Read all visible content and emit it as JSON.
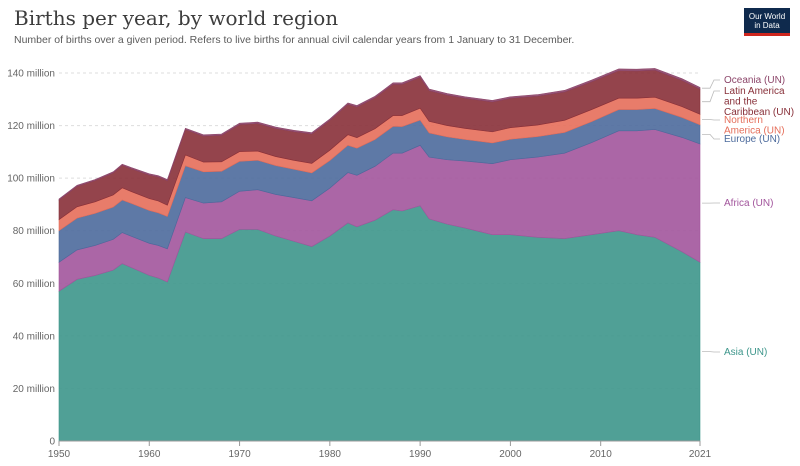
{
  "header": {
    "title": "Births per year, by world region",
    "subtitle": "Number of births over a given period. Refers to live births for annual civil calendar years from 1 January to 31 December."
  },
  "logo": {
    "line1": "Our World",
    "line2": "in Data"
  },
  "colors": {
    "asia": "#3d968b",
    "africa": "#a2559c",
    "europe": "#4c6a9c",
    "northern_america": "#e56e5a",
    "latin_america": "#883039",
    "oceania": "#8c4569",
    "gridline": "#dddddd",
    "axis": "#999999"
  },
  "chart_data": {
    "type": "area",
    "stacked": true,
    "title": "Births per year, by world region",
    "xlim": [
      1950,
      2021
    ],
    "ylim": [
      0,
      140000000
    ],
    "x_ticks": [
      1950,
      1960,
      1970,
      1980,
      1990,
      2000,
      2010,
      2021
    ],
    "y_ticks": [
      {
        "value": 0,
        "label": "0"
      },
      {
        "value": 20000000,
        "label": "20 million"
      },
      {
        "value": 40000000,
        "label": "40 million"
      },
      {
        "value": 60000000,
        "label": "60 million"
      },
      {
        "value": 80000000,
        "label": "80 million"
      },
      {
        "value": 100000000,
        "label": "100 million"
      },
      {
        "value": 120000000,
        "label": "120 million"
      },
      {
        "value": 140000000,
        "label": "140 million"
      }
    ],
    "x": [
      1950,
      1952,
      1954,
      1956,
      1957,
      1958,
      1960,
      1961,
      1962,
      1963,
      1964,
      1966,
      1968,
      1970,
      1972,
      1974,
      1976,
      1978,
      1980,
      1982,
      1983,
      1985,
      1987,
      1988,
      1990,
      1991,
      1993,
      1995,
      1998,
      2000,
      2003,
      2006,
      2009,
      2012,
      2014,
      2016,
      2019,
      2021
    ],
    "series": [
      {
        "name": "Asia (UN)",
        "color_key": "asia",
        "values": [
          57,
          61.5,
          63,
          65,
          67.5,
          66,
          63,
          62,
          60.5,
          70,
          79.5,
          77,
          77,
          80.5,
          80.5,
          78,
          76,
          74,
          78,
          83,
          81.5,
          84,
          88,
          87.5,
          89.5,
          84.5,
          82.5,
          81,
          78.5,
          78.5,
          77.5,
          77,
          78.5,
          80,
          78.5,
          77.5,
          72,
          68
        ]
      },
      {
        "name": "Africa (UN)",
        "color_key": "africa",
        "values": [
          11,
          11.2,
          11.4,
          11.7,
          11.8,
          11.9,
          12.2,
          12.4,
          12.6,
          12.9,
          13.1,
          13.5,
          14,
          14.5,
          15.1,
          15.8,
          16.6,
          17.4,
          18.2,
          19.1,
          19.6,
          20.5,
          21.5,
          22,
          23,
          23.5,
          24.5,
          25.5,
          27,
          28.5,
          30.5,
          32.5,
          35,
          38,
          39.5,
          41,
          43.5,
          45
        ]
      },
      {
        "name": "Europe (UN)",
        "color_key": "europe",
        "values": [
          12,
          12.1,
          12.2,
          12.3,
          12.4,
          12.5,
          12.5,
          12.4,
          12.3,
          12.2,
          12.1,
          11.9,
          11.6,
          11.4,
          11.2,
          11,
          10.8,
          10.6,
          10.5,
          10.4,
          10.3,
          10.2,
          10.2,
          10.1,
          9.6,
          9.2,
          8.7,
          8.2,
          7.9,
          7.8,
          7.8,
          7.9,
          8,
          8.1,
          8.1,
          8,
          7.6,
          7.3
        ]
      },
      {
        "name": "Northern America (UN)",
        "color_key": "northern_america",
        "values": [
          4.2,
          4.3,
          4.4,
          4.6,
          4.6,
          4.5,
          4.5,
          4.5,
          4.3,
          4.2,
          4.1,
          3.7,
          3.6,
          3.7,
          3.5,
          3.4,
          3.4,
          3.6,
          3.9,
          4,
          4,
          4.1,
          4.1,
          4.2,
          4.5,
          4.4,
          4.3,
          4.2,
          4.2,
          4.4,
          4.4,
          4.6,
          4.6,
          4.3,
          4.3,
          4.3,
          4.1,
          4
        ]
      },
      {
        "name": "Latin America and the Caribbean (UN)",
        "color_key": "latin_america",
        "values": [
          7.5,
          7.8,
          8.1,
          8.4,
          8.6,
          8.7,
          9,
          9.2,
          9.3,
          9.5,
          9.7,
          9.9,
          10.1,
          10.3,
          10.5,
          10.7,
          10.9,
          11.2,
          11.4,
          11.6,
          11.7,
          11.8,
          11.9,
          11.9,
          11.8,
          11.7,
          11.6,
          11.5,
          11.4,
          11.2,
          11,
          10.8,
          10.6,
          10.5,
          10.4,
          10.3,
          10,
          9.6
        ]
      },
      {
        "name": "Oceania (UN)",
        "color_key": "oceania",
        "values": [
          0.35,
          0.37,
          0.39,
          0.41,
          0.42,
          0.43,
          0.45,
          0.46,
          0.47,
          0.48,
          0.48,
          0.48,
          0.49,
          0.5,
          0.52,
          0.52,
          0.5,
          0.5,
          0.5,
          0.52,
          0.53,
          0.54,
          0.55,
          0.56,
          0.58,
          0.58,
          0.58,
          0.57,
          0.57,
          0.57,
          0.58,
          0.6,
          0.65,
          0.66,
          0.66,
          0.66,
          0.64,
          0.63
        ]
      }
    ],
    "value_unit_multiplier": 1000000,
    "legend_position": "right"
  }
}
